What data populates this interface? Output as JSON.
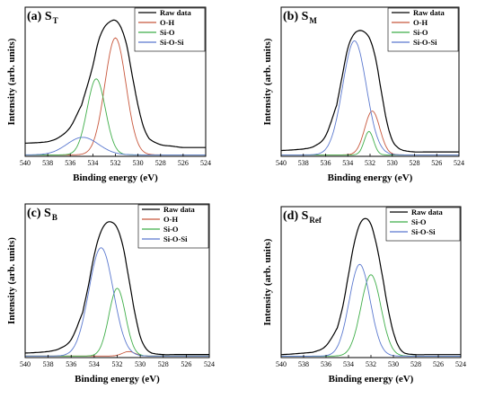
{
  "colors": {
    "raw": "#000000",
    "OH": "#c8573c",
    "SiO": "#3fae49",
    "SiOSi": "#5a78cf"
  },
  "chart_data": [
    {
      "type": "line",
      "panel_label": "(a) S",
      "panel_sub": "T",
      "xlabel": "Binding energy (eV)",
      "ylabel": "Intensity (arb. units)",
      "xlim": [
        540,
        524
      ],
      "xticks": [
        "540",
        "538",
        "536",
        "534",
        "532",
        "530",
        "528",
        "526",
        "524"
      ],
      "legend": [
        "Raw data",
        "O-H",
        "Si-O",
        "Si-O-Si"
      ],
      "legend_position": "top-right",
      "series": [
        {
          "name": "Raw data",
          "color_key": "raw",
          "x": [
            540,
            538,
            537,
            536,
            535,
            534.5,
            534,
            533.5,
            533,
            532.5,
            532,
            531.5,
            531,
            530.5,
            530,
            529.5,
            529,
            528,
            527,
            526
          ],
          "y": [
            0.09,
            0.1,
            0.13,
            0.2,
            0.35,
            0.48,
            0.62,
            0.79,
            0.88,
            0.92,
            0.93,
            0.88,
            0.76,
            0.55,
            0.35,
            0.2,
            0.12,
            0.08,
            0.07,
            0.06
          ]
        },
        {
          "name": "O-H",
          "color_key": "OH",
          "peak": {
            "center": 532.0,
            "fwhm": 2.2,
            "height": 0.8
          }
        },
        {
          "name": "Si-O",
          "color_key": "SiO",
          "peak": {
            "center": 533.7,
            "fwhm": 1.9,
            "height": 0.52
          }
        },
        {
          "name": "Si-O-Si",
          "color_key": "SiOSi",
          "peak": {
            "center": 534.9,
            "fwhm": 3.3,
            "height": 0.12
          }
        }
      ]
    },
    {
      "type": "line",
      "panel_label": "(b) S",
      "panel_sub": "M",
      "xlabel": "Binding energy (eV)",
      "ylabel": "Intensity (arb. units)",
      "xlim": [
        540,
        524
      ],
      "xticks": [
        "540",
        "538",
        "536",
        "534",
        "532",
        "530",
        "528",
        "526",
        "524"
      ],
      "legend": [
        "Raw data",
        "O-H",
        "Si-O",
        "Si-O-Si"
      ],
      "legend_position": "top-right",
      "series": [
        {
          "name": "Raw data",
          "color_key": "raw",
          "x": [
            540,
            538,
            537,
            536,
            535,
            534.5,
            534,
            533.5,
            533,
            532.5,
            532,
            531.5,
            531,
            530.5,
            530,
            529.5,
            529,
            528,
            527,
            526
          ],
          "y": [
            0.04,
            0.05,
            0.07,
            0.14,
            0.35,
            0.55,
            0.74,
            0.83,
            0.86,
            0.85,
            0.8,
            0.67,
            0.45,
            0.24,
            0.11,
            0.06,
            0.04,
            0.03,
            0.03,
            0.03
          ]
        },
        {
          "name": "O-H",
          "color_key": "OH",
          "peak": {
            "center": 531.8,
            "fwhm": 1.6,
            "height": 0.3
          }
        },
        {
          "name": "Si-O",
          "color_key": "SiO",
          "peak": {
            "center": 532.1,
            "fwhm": 1.0,
            "height": 0.16
          }
        },
        {
          "name": "Si-O-Si",
          "color_key": "SiOSi",
          "peak": {
            "center": 533.4,
            "fwhm": 2.5,
            "height": 0.78
          }
        }
      ]
    },
    {
      "type": "line",
      "panel_label": "(c) S",
      "panel_sub": "B",
      "xlabel": "Binding energy (eV)",
      "ylabel": "Intensity (arb. units)",
      "xlim": [
        540,
        524
      ],
      "xticks": [
        "540",
        "538",
        "536",
        "534",
        "532",
        "530",
        "528",
        "526",
        "524"
      ],
      "legend": [
        "Raw data",
        "O-H",
        "Si-O",
        "Si-O-Si"
      ],
      "legend_position": "top-right",
      "series": [
        {
          "name": "Raw data",
          "color_key": "raw",
          "x": [
            540,
            538,
            537,
            536,
            535,
            534.5,
            534,
            533.5,
            533,
            532.5,
            532,
            531.5,
            531,
            530.5,
            530,
            529.5,
            529,
            528,
            527,
            526
          ],
          "y": [
            0.03,
            0.04,
            0.06,
            0.12,
            0.3,
            0.48,
            0.68,
            0.82,
            0.89,
            0.9,
            0.86,
            0.74,
            0.53,
            0.31,
            0.14,
            0.06,
            0.03,
            0.02,
            0.02,
            0.02
          ]
        },
        {
          "name": "O-H",
          "color_key": "OH",
          "peak": {
            "center": 531.0,
            "fwhm": 1.3,
            "height": 0.03
          }
        },
        {
          "name": "Si-O",
          "color_key": "SiO",
          "peak": {
            "center": 532.0,
            "fwhm": 1.7,
            "height": 0.45
          }
        },
        {
          "name": "Si-O-Si",
          "color_key": "SiOSi",
          "peak": {
            "center": 533.4,
            "fwhm": 2.5,
            "height": 0.72
          }
        }
      ]
    },
    {
      "type": "line",
      "panel_label": "(d) S",
      "panel_sub": "Ref",
      "xlabel": "Binding energy (eV)",
      "ylabel": "Intensity (arb. units)",
      "xlim": [
        540,
        524
      ],
      "xticks": [
        "540",
        "538",
        "536",
        "534",
        "532",
        "530",
        "528",
        "526",
        "524"
      ],
      "legend": [
        "Raw data",
        "Si-O",
        "Si-O-Si"
      ],
      "legend_position": "top-right",
      "series": [
        {
          "name": "Raw data",
          "color_key": "raw",
          "x": [
            540,
            538,
            537,
            536,
            535,
            534.5,
            534,
            533.5,
            533,
            532.5,
            532,
            531.5,
            531,
            530.5,
            530,
            529.5,
            529,
            528,
            527,
            526
          ],
          "y": [
            0.02,
            0.03,
            0.04,
            0.08,
            0.2,
            0.35,
            0.56,
            0.77,
            0.9,
            0.94,
            0.9,
            0.76,
            0.56,
            0.34,
            0.17,
            0.07,
            0.03,
            0.02,
            0.02,
            0.02
          ]
        },
        {
          "name": "Si-O",
          "color_key": "SiO",
          "peak": {
            "center": 532.0,
            "fwhm": 2.1,
            "height": 0.55
          }
        },
        {
          "name": "Si-O-Si",
          "color_key": "SiOSi",
          "peak": {
            "center": 533.0,
            "fwhm": 2.2,
            "height": 0.62
          }
        }
      ]
    }
  ]
}
